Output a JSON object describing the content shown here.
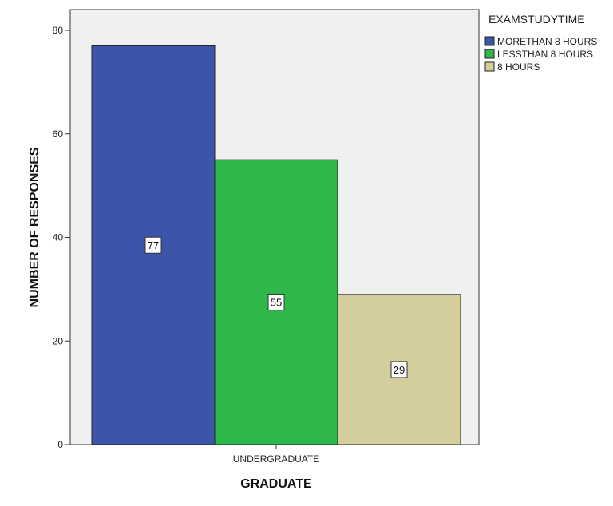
{
  "chart_data": {
    "type": "bar",
    "title": "",
    "xlabel": "GRADUATE",
    "ylabel": "NUMBER OF RESPONSES",
    "categories": [
      "UNDERGRADUATE"
    ],
    "ylim": [
      0,
      80
    ],
    "yticks": [
      0,
      20,
      40,
      60,
      80
    ],
    "grid": false,
    "legend": {
      "title": "EXAMSTUDYTIME",
      "placement": "top-right"
    },
    "series": [
      {
        "name": "MORETHAN 8 HOURS",
        "values": [
          77
        ],
        "color": "#3c55a8",
        "label": "77"
      },
      {
        "name": "LESSTHAN 8 HOURS",
        "values": [
          55
        ],
        "color": "#2eb84a",
        "label": "55"
      },
      {
        "name": "8 HOURS",
        "values": [
          29
        ],
        "color": "#d4ce9d",
        "label": "29"
      }
    ],
    "plot_background": "#f0f0f0"
  }
}
